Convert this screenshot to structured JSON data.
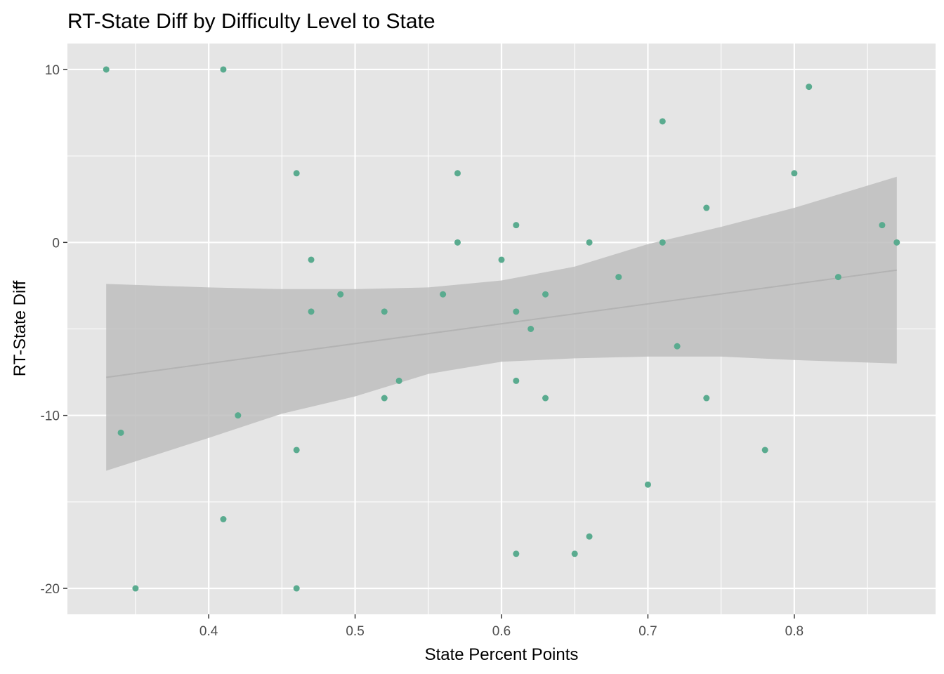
{
  "chart_data": {
    "type": "scatter",
    "title": "RT-State Diff by Difficulty Level to State",
    "xlabel": "State Percent Points",
    "ylabel": "RT-State Diff",
    "xlim": [
      0.3035,
      0.8965
    ],
    "ylim": [
      -21.5,
      11.5
    ],
    "x_ticks": [
      0.4,
      0.5,
      0.6,
      0.7,
      0.8
    ],
    "x_tick_labels": [
      "0.4",
      "0.5",
      "0.6",
      "0.7",
      "0.8"
    ],
    "y_ticks": [
      10,
      0,
      -10,
      -20
    ],
    "y_tick_labels": [
      "10",
      "0",
      "-10",
      "-20"
    ],
    "grid": true,
    "panel_background": "#e5e5e5",
    "point_color": "#5aab8f",
    "band_color": "#bebebe",
    "line_color": "#b3b3b3",
    "points": [
      {
        "x": 0.33,
        "y": 10
      },
      {
        "x": 0.41,
        "y": 10
      },
      {
        "x": 0.34,
        "y": -11
      },
      {
        "x": 0.35,
        "y": -20
      },
      {
        "x": 0.41,
        "y": -16
      },
      {
        "x": 0.42,
        "y": -10
      },
      {
        "x": 0.46,
        "y": 4
      },
      {
        "x": 0.46,
        "y": -12
      },
      {
        "x": 0.46,
        "y": -20
      },
      {
        "x": 0.47,
        "y": -1
      },
      {
        "x": 0.47,
        "y": -4
      },
      {
        "x": 0.49,
        "y": -3
      },
      {
        "x": 0.52,
        "y": -4
      },
      {
        "x": 0.52,
        "y": -9
      },
      {
        "x": 0.53,
        "y": -8
      },
      {
        "x": 0.56,
        "y": -3
      },
      {
        "x": 0.57,
        "y": 4
      },
      {
        "x": 0.57,
        "y": 0
      },
      {
        "x": 0.6,
        "y": -1
      },
      {
        "x": 0.61,
        "y": 1
      },
      {
        "x": 0.61,
        "y": -4
      },
      {
        "x": 0.61,
        "y": -8
      },
      {
        "x": 0.61,
        "y": -18
      },
      {
        "x": 0.62,
        "y": -5
      },
      {
        "x": 0.63,
        "y": -3
      },
      {
        "x": 0.63,
        "y": -9
      },
      {
        "x": 0.65,
        "y": -18
      },
      {
        "x": 0.66,
        "y": 0
      },
      {
        "x": 0.66,
        "y": -17
      },
      {
        "x": 0.68,
        "y": -2
      },
      {
        "x": 0.7,
        "y": -14
      },
      {
        "x": 0.71,
        "y": 7
      },
      {
        "x": 0.71,
        "y": 0
      },
      {
        "x": 0.72,
        "y": -6
      },
      {
        "x": 0.74,
        "y": 2
      },
      {
        "x": 0.74,
        "y": -9
      },
      {
        "x": 0.78,
        "y": -12
      },
      {
        "x": 0.8,
        "y": 4
      },
      {
        "x": 0.81,
        "y": 9
      },
      {
        "x": 0.83,
        "y": -2
      },
      {
        "x": 0.86,
        "y": 1
      },
      {
        "x": 0.87,
        "y": 0
      }
    ],
    "fit_line": [
      {
        "x": 0.33,
        "y": -7.8
      },
      {
        "x": 0.87,
        "y": -1.6
      }
    ],
    "confidence_band": {
      "x": [
        0.33,
        0.4,
        0.45,
        0.5,
        0.55,
        0.6,
        0.65,
        0.7,
        0.75,
        0.8,
        0.87
      ],
      "upper": [
        -2.4,
        -2.6,
        -2.7,
        -2.7,
        -2.6,
        -2.2,
        -1.4,
        -0.1,
        0.9,
        2.0,
        3.8
      ],
      "lower": [
        -13.2,
        -11.3,
        -9.9,
        -8.9,
        -7.6,
        -6.9,
        -6.7,
        -6.6,
        -6.6,
        -6.8,
        -7.0
      ]
    }
  }
}
